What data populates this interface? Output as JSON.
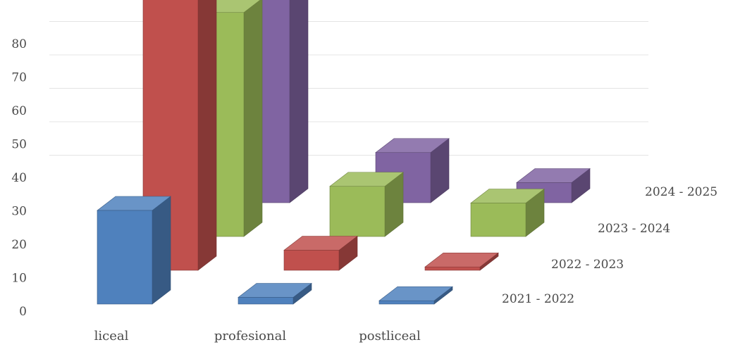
{
  "chart_data": {
    "type": "bar",
    "subtype": "3d-bar",
    "title": "",
    "xlabel": "",
    "ylabel": "",
    "categories": [
      "liceal",
      "profesional",
      "postliceal"
    ],
    "series": [
      {
        "name": "2021 - 2022",
        "values": [
          28,
          2,
          1
        ],
        "color": "#4f81bd"
      },
      {
        "name": "2022 - 2023",
        "values": [
          85,
          6,
          1
        ],
        "color": "#c0504d"
      },
      {
        "name": "2023 - 2024",
        "values": [
          67,
          15,
          10
        ],
        "color": "#9bbb59"
      },
      {
        "name": "2024 - 2025",
        "values": [
          69,
          15,
          6
        ],
        "color": "#8064a2"
      }
    ],
    "yticks": [
      "0",
      "10",
      "20",
      "30",
      "40",
      "50",
      "60",
      "70",
      "80"
    ],
    "ylim": [
      0,
      90
    ],
    "grid": true,
    "legend": "series labels along depth axis, right"
  }
}
